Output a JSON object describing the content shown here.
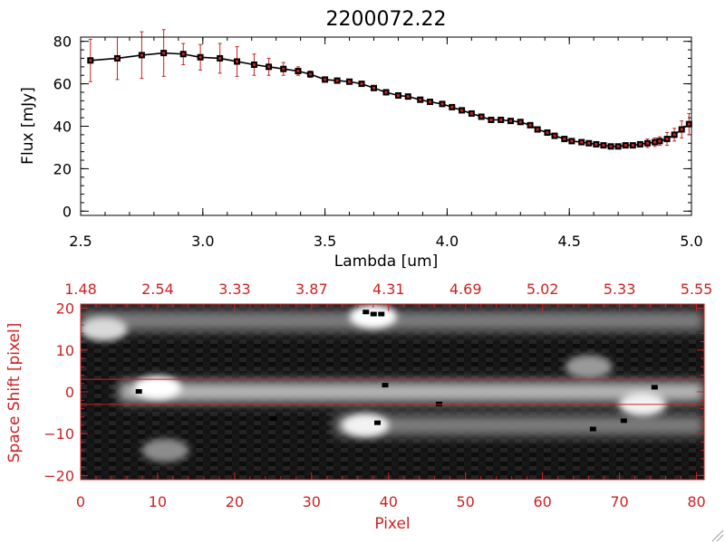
{
  "colors": {
    "axis": "#000000",
    "accent": "#cc2222",
    "data": "#000000",
    "marker": "#cc2222"
  },
  "chart_data": [
    {
      "type": "line",
      "title": "2200072.22",
      "xlabel": "Lambda [um]",
      "ylabel": "Flux [mJy]",
      "xlim": [
        2.5,
        5.0
      ],
      "ylim": [
        -2,
        82
      ],
      "xticks": [
        2.5,
        3.0,
        3.5,
        4.0,
        4.5,
        5.0
      ],
      "xtick_labels": [
        "2.5",
        "3.0",
        "3.5",
        "4.0",
        "4.5",
        "5.0"
      ],
      "yticks": [
        0,
        20,
        40,
        60,
        80
      ],
      "ytick_labels": [
        "0",
        "20",
        "40",
        "60",
        "80"
      ],
      "series": [
        {
          "name": "flux",
          "x": [
            2.54,
            2.65,
            2.75,
            2.84,
            2.92,
            2.99,
            3.07,
            3.14,
            3.21,
            3.27,
            3.33,
            3.39,
            3.44,
            3.5,
            3.55,
            3.6,
            3.65,
            3.7,
            3.75,
            3.8,
            3.84,
            3.89,
            3.93,
            3.98,
            4.02,
            4.06,
            4.1,
            4.14,
            4.18,
            4.22,
            4.26,
            4.3,
            4.34,
            4.37,
            4.41,
            4.44,
            4.48,
            4.51,
            4.55,
            4.58,
            4.61,
            4.64,
            4.67,
            4.7,
            4.73,
            4.76,
            4.79,
            4.82,
            4.85,
            4.87,
            4.9,
            4.93,
            4.96,
            4.99
          ],
          "y": [
            71,
            72,
            73.5,
            74.5,
            74,
            72.5,
            72,
            70.5,
            69,
            68,
            67,
            66,
            64.5,
            62,
            61.5,
            61,
            60,
            58,
            56,
            54.5,
            54,
            52.5,
            51.5,
            50.5,
            49,
            47.5,
            46,
            44.5,
            43,
            43,
            42.5,
            42,
            40.5,
            38.5,
            37,
            35.5,
            34,
            33,
            32.5,
            32,
            31.5,
            31,
            30.5,
            30.5,
            31,
            31,
            31.5,
            32,
            32.5,
            33,
            34,
            36,
            38.5,
            41
          ],
          "err": [
            10,
            10,
            11,
            11,
            5,
            6,
            7,
            7,
            5,
            4,
            3,
            2,
            1.5,
            1,
            1,
            1,
            1,
            1,
            1,
            1,
            1,
            1,
            1,
            1,
            1,
            1,
            1,
            1,
            1,
            1,
            1,
            1,
            1,
            1,
            1,
            1,
            1,
            1,
            1,
            1,
            1,
            1,
            1,
            1,
            1,
            1,
            1,
            2,
            2,
            2,
            3,
            3,
            4,
            5
          ]
        }
      ]
    },
    {
      "type": "heatmap",
      "xlabel": "Pixel",
      "ylabel": "Space Shift [pixel]",
      "xlim": [
        0,
        81
      ],
      "ylim": [
        -21,
        21
      ],
      "xticks": [
        0,
        10,
        20,
        30,
        40,
        50,
        60,
        70,
        80
      ],
      "xtick_labels": [
        "0",
        "10",
        "20",
        "30",
        "40",
        "50",
        "60",
        "70",
        "80"
      ],
      "yticks": [
        -20,
        -10,
        0,
        10,
        20
      ],
      "ytick_labels": [
        "−20",
        "−10",
        "0",
        "10",
        "20"
      ],
      "top_xticks": [
        0,
        10,
        20,
        30,
        40,
        50,
        60,
        70,
        80
      ],
      "top_xtick_labels": [
        "1.48",
        "2.54",
        "3.33",
        "3.87",
        "4.31",
        "4.69",
        "5.02",
        "5.33",
        "5.55"
      ],
      "hlines": [
        3,
        -3
      ],
      "bright_bands": [
        {
          "label": "upper trace",
          "y_center": 17,
          "x_start": 0,
          "x_end": 81,
          "intensity": 0.55
        },
        {
          "label": "central trace",
          "y_center": 0,
          "x_start": 5,
          "x_end": 81,
          "intensity": 0.8
        },
        {
          "label": "lower trace",
          "y_center": -8,
          "x_start": 33,
          "x_end": 81,
          "intensity": 0.55
        }
      ],
      "blobs": [
        {
          "x": 3,
          "y": 15,
          "intensity": 0.85,
          "note": "bright patch"
        },
        {
          "x": 10,
          "y": 1,
          "intensity": 1.0,
          "note": "central trace head"
        },
        {
          "x": 11,
          "y": -14,
          "intensity": 0.55,
          "note": "faint patch"
        },
        {
          "x": 38,
          "y": 18,
          "intensity": 1.0,
          "note": "upper trace head"
        },
        {
          "x": 37,
          "y": -8,
          "intensity": 0.95,
          "note": "lower trace head"
        },
        {
          "x": 66,
          "y": 6,
          "intensity": 0.6,
          "note": "faint patch"
        },
        {
          "x": 73,
          "y": -3,
          "intensity": 0.95,
          "note": "right bright patch"
        }
      ],
      "bad_pixels": [
        {
          "x": 37,
          "y": 19
        },
        {
          "x": 38,
          "y": 18.5
        },
        {
          "x": 39,
          "y": 18.5
        },
        {
          "x": 7.5,
          "y": 0
        },
        {
          "x": 39.5,
          "y": 1.5
        },
        {
          "x": 46.5,
          "y": -3
        },
        {
          "x": 74.5,
          "y": 1
        },
        {
          "x": 38.5,
          "y": -7.5
        },
        {
          "x": 66.5,
          "y": -9
        },
        {
          "x": 70.5,
          "y": -7
        },
        {
          "x": 25,
          "y": -6.5
        }
      ]
    }
  ]
}
